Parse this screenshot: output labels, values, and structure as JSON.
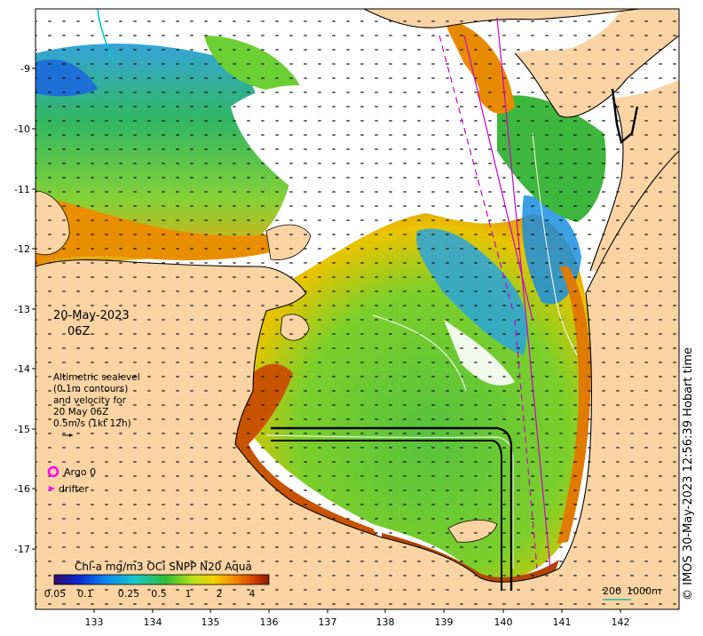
{
  "map": {
    "date_line1": "20-May-2023",
    "date_line2": "06Z",
    "altimetry_note": [
      "Altimetric sealevel",
      "(0.1m contours)",
      "and velocity for",
      "20 May 06Z",
      "0.5m/s (1kt 12h)"
    ],
    "legend": {
      "argo_label": "Argo 0",
      "drifter_label": "drifter",
      "argo_color": "#ff00ff",
      "drifter_color": "#ff00ff"
    },
    "colorbar": {
      "title": "Chl-a mg/m3 OCi SNPP N20 Aqua",
      "ticks": [
        "0.05",
        "0.1",
        "0.25",
        "0.5",
        "1",
        "2",
        "4"
      ]
    },
    "scale_bar_labels": [
      "200",
      "1000m"
    ],
    "credit": "© IMOS 30-May-2023 12:56:39 Hobart time",
    "x_axis_ticks": [
      "133",
      "134",
      "135",
      "136",
      "137",
      "138",
      "139",
      "140",
      "141",
      "142"
    ],
    "y_axis_ticks": [
      "-9",
      "-10",
      "-11",
      "-12",
      "-13",
      "-14",
      "-15",
      "-16",
      "-17"
    ],
    "colors": {
      "land": "#fbd4a4",
      "ocean_cloud": "#ffffff",
      "chl_low": "#1e90ff",
      "chl_mid": "#3cb44b",
      "chl_high": "#f5a000",
      "chl_max": "#a52a00",
      "track": "#cc00cc"
    }
  }
}
